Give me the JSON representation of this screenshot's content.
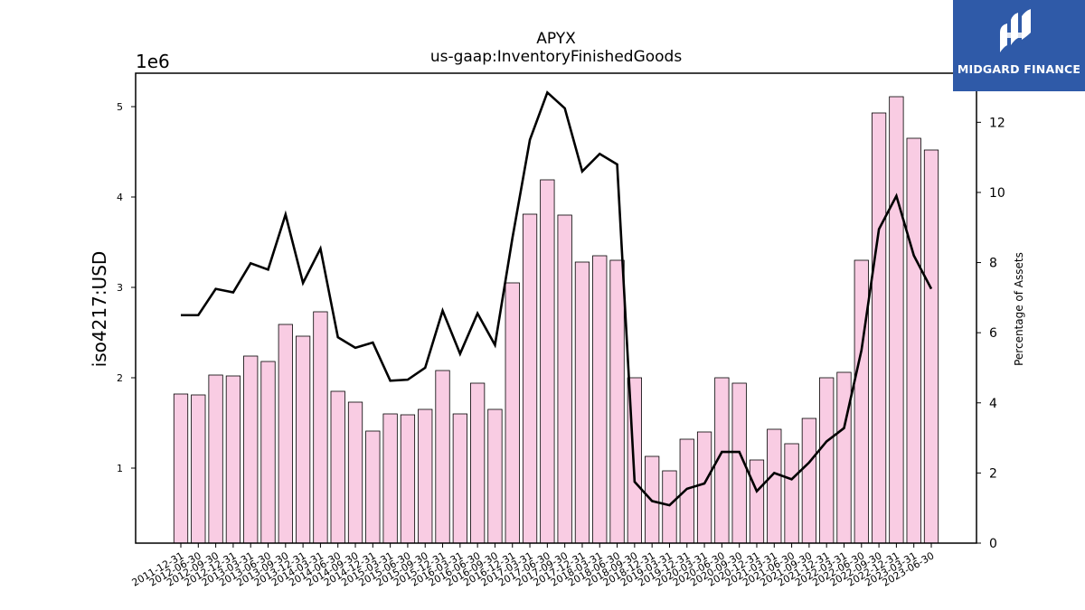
{
  "chart_data": {
    "type": "bar",
    "title": "APYX",
    "subtitle": "us-gaap:InventoryFinishedGoods",
    "ylabel": "iso4217:USD",
    "y_offset_label": "1e6",
    "y2label": "Percentage of Assets",
    "categories": [
      "2011-12-31",
      "2012-06-30",
      "2012-09-30",
      "2012-12-31",
      "2013-03-31",
      "2013-06-30",
      "2013-09-30",
      "2013-12-31",
      "2014-03-31",
      "2014-06-30",
      "2014-09-30",
      "2014-12-31",
      "2015-03-31",
      "2015-06-30",
      "2015-09-30",
      "2015-12-31",
      "2016-03-31",
      "2016-06-30",
      "2016-09-30",
      "2016-12-31",
      "2017-03-31",
      "2017-06-30",
      "2017-09-30",
      "2017-12-31",
      "2018-03-31",
      "2018-06-30",
      "2018-09-30",
      "2018-12-31",
      "2019-03-31",
      "2019-12-31",
      "2020-03-31",
      "2020-06-30",
      "2020-09-30",
      "2020-12-31",
      "2021-03-31",
      "2021-06-30",
      "2021-09-30",
      "2021-12-31",
      "2022-03-31",
      "2022-06-30",
      "2022-09-30",
      "2022-12-31",
      "2023-03-31",
      "2023-06-30"
    ],
    "series": [
      {
        "kind": "bar",
        "axis": "left",
        "color": "#f9cce3",
        "values": [
          1820000,
          1810000,
          2030000,
          2020000,
          2240000,
          2180000,
          2590000,
          2460000,
          2730000,
          1850000,
          1730000,
          1410000,
          1600000,
          1590000,
          1650000,
          2080000,
          1600000,
          1940000,
          1650000,
          3050000,
          3810000,
          4190000,
          3800000,
          3280000,
          3350000,
          3300000,
          2000000,
          1130000,
          970000,
          1320000,
          1400000,
          2000000,
          1940000,
          1090000,
          1430000,
          1270000,
          1550000,
          2000000,
          2060000,
          3300000,
          4930000,
          5110000,
          4650000,
          4520000
        ]
      },
      {
        "kind": "line",
        "axis": "right",
        "color": "#000000",
        "values": [
          6.5,
          6.5,
          7.25,
          7.15,
          7.98,
          7.8,
          9.37,
          7.42,
          8.4,
          5.87,
          5.57,
          5.72,
          4.63,
          4.66,
          5.0,
          6.63,
          5.4,
          6.55,
          5.65,
          8.7,
          11.5,
          12.85,
          12.4,
          10.6,
          11.1,
          10.8,
          1.75,
          1.2,
          1.08,
          1.55,
          1.7,
          2.6,
          2.6,
          1.48,
          2.0,
          1.82,
          2.3,
          2.9,
          3.28,
          5.5,
          8.95,
          9.9,
          8.2,
          7.25
        ]
      }
    ],
    "y_ticks": [
      1,
      2,
      3,
      4,
      5
    ],
    "y_range_millions": [
      0.17,
      5.37
    ],
    "y2_ticks": [
      0,
      2,
      4,
      6,
      8,
      10,
      12
    ],
    "y2_range": [
      0,
      13.4
    ],
    "grid": false,
    "legend": "none"
  },
  "brand": {
    "name": "MIDGARD FINANCE",
    "color": "#2f5aa8"
  }
}
